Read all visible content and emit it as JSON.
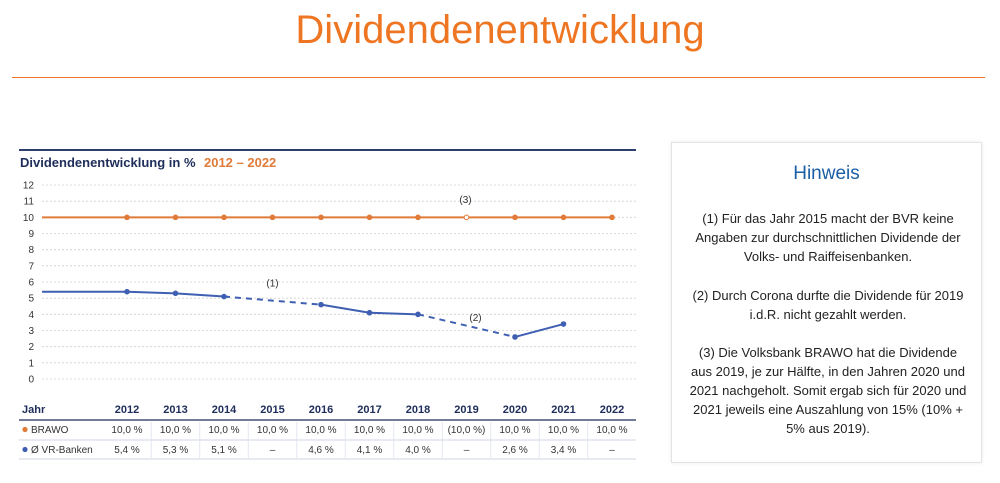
{
  "page": {
    "title": "Dividendenentwicklung"
  },
  "chart_data": {
    "type": "line",
    "title_prefix": "Dividendenentwicklung in %",
    "title_range": "2012 – 2022",
    "xlabel": "Jahr",
    "ylabel": "",
    "ylim": [
      0,
      12
    ],
    "y_ticks": [
      "0",
      "1",
      "2",
      "3",
      "4",
      "5",
      "6",
      "7",
      "8",
      "9",
      "10",
      "11",
      "12"
    ],
    "categories": [
      "2012",
      "2013",
      "2014",
      "2015",
      "2016",
      "2017",
      "2018",
      "2019",
      "2020",
      "2021",
      "2022"
    ],
    "series": [
      {
        "name": "BRAWO",
        "color": "#e07b39",
        "values": [
          10,
          10,
          10,
          10,
          10,
          10,
          10,
          10,
          10,
          10,
          10
        ],
        "labels": [
          "10,0 %",
          "10,0 %",
          "10,0 %",
          "10,0 %",
          "10,0 %",
          "10,0 %",
          "10,0 %",
          "(10,0 %)",
          "10,0 %",
          "10,0 %",
          "10,0 %"
        ],
        "hollow_points": [
          "2019"
        ]
      },
      {
        "name": "Ø VR-Banken",
        "color": "#3f5fb2",
        "values": [
          5.4,
          5.3,
          5.1,
          null,
          4.6,
          4.1,
          4.0,
          null,
          2.6,
          3.4,
          null
        ],
        "labels": [
          "5,4 %",
          "5,3 %",
          "5,1 %",
          "–",
          "4,6 %",
          "4,1 %",
          "4,0 %",
          "–",
          "2,6 %",
          "3,4 %",
          "–"
        ],
        "draw_until": "2021"
      }
    ],
    "annotations": [
      {
        "text": "(1)",
        "near": "2015",
        "series": "Ø VR-Banken"
      },
      {
        "text": "(2)",
        "near": "2019",
        "series": "Ø VR-Banken"
      },
      {
        "text": "(3)",
        "near": "2019",
        "series": "BRAWO"
      }
    ],
    "grid": true,
    "legend": "table below chart"
  },
  "hint": {
    "title": "Hinweis",
    "notes": [
      "(1) Für das Jahr 2015 macht der BVR keine Angaben zur durchschnittlichen Dividende der Volks- und Raiffeisenbanken.",
      "(2) Durch Corona durfte die Dividende für 2019 i.d.R. nicht gezahlt werden.",
      "(3) Die Volksbank BRAWO hat die Dividende aus 2019, je zur Hälfte, in den Jahren 2020 und 2021 nachgeholt. Somit ergab sich für 2020 und 2021 jeweils eine Auszahlung von 15% (10% + 5% aus 2019)."
    ]
  }
}
